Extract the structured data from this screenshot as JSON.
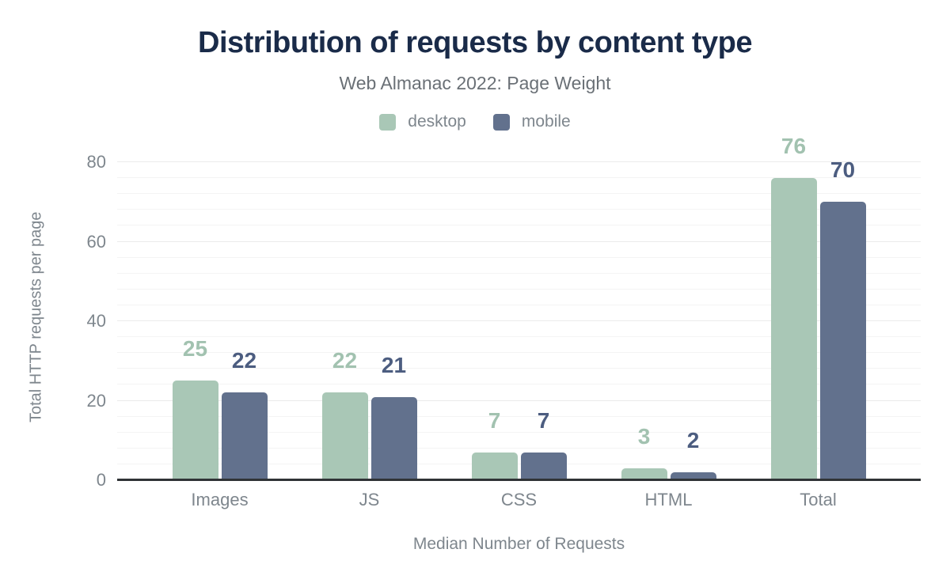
{
  "title": "Distribution of requests by content type",
  "subtitle": "Web Almanac 2022: Page Weight",
  "colors": {
    "title": "#1a2b49",
    "subtitle": "#6a7076",
    "axis_text": "#7e868d",
    "axis_line": "#303336",
    "grid_minor": "#f4f4f4",
    "grid_major": "#ebebeb"
  },
  "chart_data": {
    "type": "bar",
    "title": "Distribution of requests by content type",
    "subtitle": "Web Almanac 2022: Page Weight",
    "categories": [
      "Images",
      "JS",
      "CSS",
      "HTML",
      "Total"
    ],
    "series": [
      {
        "name": "desktop",
        "color": "#a9c7b6",
        "label_color": "#a2c2b0",
        "values": [
          25,
          22,
          7,
          3,
          76
        ]
      },
      {
        "name": "mobile",
        "color": "#62718d",
        "label_color": "#4c5d80",
        "values": [
          22,
          21,
          7,
          2,
          70
        ]
      }
    ],
    "xlabel": "Median Number of Requests",
    "ylabel": "Total HTTP requests per page",
    "ylim": [
      0,
      82
    ],
    "yticks": [
      0,
      20,
      40,
      60,
      80
    ],
    "minor_grid_step": 4,
    "grid": true,
    "legend_position": "top"
  }
}
